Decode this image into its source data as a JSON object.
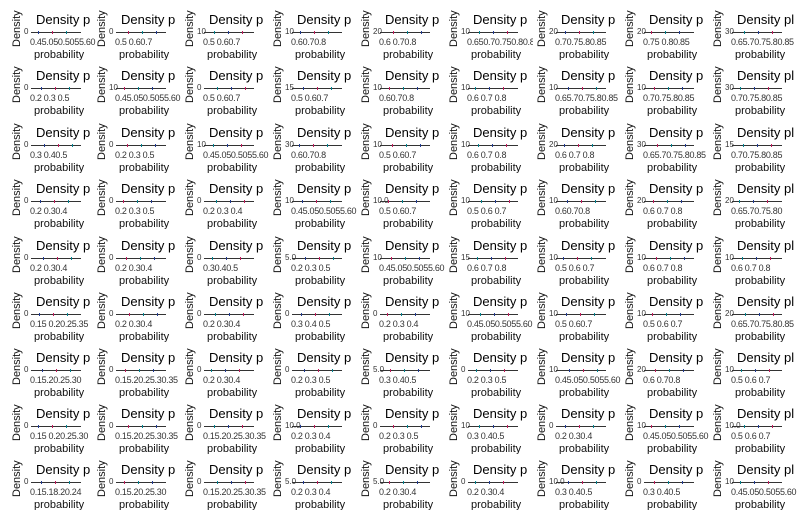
{
  "chart_data": {
    "type": "density",
    "layout": {
      "rows": 9,
      "cols": 9
    },
    "panel_title": "Density p",
    "panel_title_wide": "Density pl",
    "xlabel": "probability",
    "ylabel": "Density",
    "line_colors": [
      "#1f3a93",
      "#c2185b",
      "#00838f"
    ],
    "panels": [
      {
        "ytick": "0",
        "xticks": "0.45.050.5055.60"
      },
      {
        "ytick": "0",
        "xticks": "0.5 0.60.7"
      },
      {
        "ytick": "10",
        "xticks": "0.5 0.60.7"
      },
      {
        "ytick": "10",
        "xticks": "0.60.70.8"
      },
      {
        "ytick": "20",
        "xticks": "0.6 0.70.8"
      },
      {
        "ytick": "10",
        "xticks": "0.650.70.750.80.85"
      },
      {
        "ytick": "20",
        "xticks": "0.70.75.80.85"
      },
      {
        "ytick": "20",
        "xticks": "0.75 0.80.85"
      },
      {
        "ytick": "30",
        "xticks": "0.65.70.75.80.85"
      },
      {
        "ytick": "0",
        "xticks": "0.2 0.3 0.5"
      },
      {
        "ytick": "10",
        "xticks": "0.45.050.5055.60"
      },
      {
        "ytick": "0",
        "xticks": "0.5 0.60.7"
      },
      {
        "ytick": "15",
        "xticks": "0.5 0.60.7"
      },
      {
        "ytick": "10",
        "xticks": "0.60.70.8"
      },
      {
        "ytick": "10",
        "xticks": "0.6 0.7 0.8"
      },
      {
        "ytick": "10",
        "xticks": "0.65.70.75.80.85"
      },
      {
        "ytick": "10",
        "xticks": "0.70.75.80.85"
      },
      {
        "ytick": "30",
        "xticks": "0.70.75.80.85"
      },
      {
        "ytick": "0",
        "xticks": "0.3 0.40.5"
      },
      {
        "ytick": "0",
        "xticks": "0.2 0.3 0.5"
      },
      {
        "ytick": "10",
        "xticks": "0.45.050.5055.60"
      },
      {
        "ytick": "30",
        "xticks": "0.60.70.8"
      },
      {
        "ytick": "10",
        "xticks": "0.5 0.60.7"
      },
      {
        "ytick": "10",
        "xticks": "0.6 0.7 0.8"
      },
      {
        "ytick": "20",
        "xticks": "0.6 0.7 0.8"
      },
      {
        "ytick": "30",
        "xticks": "0.65.70.75.80.85"
      },
      {
        "ytick": "15",
        "xticks": "0.70.75.80.85"
      },
      {
        "ytick": "0",
        "xticks": "0.2 0.30.4"
      },
      {
        "ytick": "0",
        "xticks": "0.2 0.3 0.5"
      },
      {
        "ytick": "0",
        "xticks": "0.2 0.3 0.4"
      },
      {
        "ytick": "10",
        "xticks": "0.45.050.5055.60"
      },
      {
        "ytick": "10.0",
        "xticks": "0.5 0.60.7"
      },
      {
        "ytick": "10",
        "xticks": "0.5 0.6 0.7"
      },
      {
        "ytick": "10",
        "xticks": "0.60.70.8"
      },
      {
        "ytick": "20",
        "xticks": "0.6 0.7 0.8"
      },
      {
        "ytick": "20",
        "xticks": "0.65.70.75.80"
      },
      {
        "ytick": "0",
        "xticks": "0.2 0.30.4"
      },
      {
        "ytick": "0",
        "xticks": "0.2 0.30.4"
      },
      {
        "ytick": "0",
        "xticks": "0.30.40.5"
      },
      {
        "ytick": "5.0",
        "xticks": "0.2 0.3 0.5"
      },
      {
        "ytick": "10",
        "xticks": "0.45.050.5055.60"
      },
      {
        "ytick": "15",
        "xticks": "0.6 0.7 0.8"
      },
      {
        "ytick": "10",
        "xticks": "0.5 0.6 0.7"
      },
      {
        "ytick": "10",
        "xticks": "0.6 0.7 0.8"
      },
      {
        "ytick": "10",
        "xticks": "0.6 0.7 0.8"
      },
      {
        "ytick": "0",
        "xticks": "0.15 0.20.25.35"
      },
      {
        "ytick": "0",
        "xticks": "0.2 0.30.4"
      },
      {
        "ytick": "0",
        "xticks": "0.2 0.30.4"
      },
      {
        "ytick": "0",
        "xticks": "0.3 0.4 0.5"
      },
      {
        "ytick": "0",
        "xticks": "0.2 0.3 0.4"
      },
      {
        "ytick": "10",
        "xticks": "0.45.050.5055.60"
      },
      {
        "ytick": "10",
        "xticks": "0.5 0.60.7"
      },
      {
        "ytick": "10",
        "xticks": "0.5 0.6 0.7"
      },
      {
        "ytick": "20",
        "xticks": "0.65.70.75.80.85"
      },
      {
        "ytick": "0",
        "xticks": "0.15.20.25.30"
      },
      {
        "ytick": "0",
        "xticks": "0.15.20.25.30.35"
      },
      {
        "ytick": "0",
        "xticks": "0.2 0.30.4"
      },
      {
        "ytick": "0",
        "xticks": "0.2 0.3 0.5"
      },
      {
        "ytick": "5.0",
        "xticks": "0.3 0.40.5"
      },
      {
        "ytick": "0",
        "xticks": "0.2 0.3 0.5"
      },
      {
        "ytick": "10",
        "xticks": "0.45.050.5055.60"
      },
      {
        "ytick": "20",
        "xticks": "0.6 0.70.8"
      },
      {
        "ytick": "10",
        "xticks": "0.5 0.6 0.7"
      },
      {
        "ytick": "0",
        "xticks": "0.15 0.20.25.30"
      },
      {
        "ytick": "0",
        "xticks": "0.15.20.25.30.35"
      },
      {
        "ytick": "0",
        "xticks": "0.15.20.25.30.35"
      },
      {
        "ytick": "10.0",
        "xticks": "0.2 0.3 0.4"
      },
      {
        "ytick": "0",
        "xticks": "0.2 0.3 0.5"
      },
      {
        "ytick": "10",
        "xticks": "0.3 0.40.5"
      },
      {
        "ytick": "0",
        "xticks": "0.2 0.30.4"
      },
      {
        "ytick": "10",
        "xticks": "0.45.050.5055.60"
      },
      {
        "ytick": "10.0",
        "xticks": "0.5 0.6 0.7"
      },
      {
        "ytick": "0",
        "xticks": "0.15.18.20.24"
      },
      {
        "ytick": "0",
        "xticks": "0.15.20.25.30"
      },
      {
        "ytick": "0",
        "xticks": "0.15.20.25.30.35"
      },
      {
        "ytick": "5.0",
        "xticks": "0.2 0.3 0.4"
      },
      {
        "ytick": "5.0",
        "xticks": "0.2 0.30.4"
      },
      {
        "ytick": "0",
        "xticks": "0.2 0.30.4"
      },
      {
        "ytick": "10.0",
        "xticks": "0.3 0.40.5"
      },
      {
        "ytick": "0",
        "xticks": "0.3 0.40.5"
      },
      {
        "ytick": "10",
        "xticks": "0.45.050.5055.60"
      }
    ]
  }
}
